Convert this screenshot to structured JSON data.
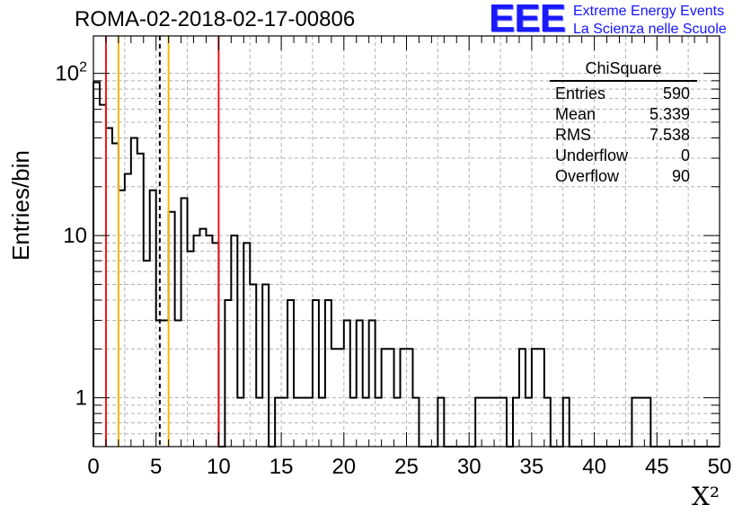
{
  "title": "ROMA-02-2018-02-17-00806",
  "logo": {
    "mark": "EEE",
    "line1": "Extreme Energy Events",
    "line2": "La Scienza nelle Scuole"
  },
  "stats": {
    "title": "ChiSquare",
    "rows": [
      {
        "label": "Entries",
        "value": "590"
      },
      {
        "label": "Mean",
        "value": "5.339"
      },
      {
        "label": "RMS",
        "value": "7.538"
      },
      {
        "label": "Underflow",
        "value": "0"
      },
      {
        "label": "Overflow",
        "value": "90"
      }
    ]
  },
  "colors": {
    "red_line": "#e8141b",
    "yellow_line": "#f2b807",
    "grid": "#b0b0b0",
    "hist": "#000000"
  },
  "chart_data": {
    "type": "bar",
    "title": "ROMA-02-2018-02-17-00806",
    "xlabel": "X²",
    "ylabel": "Entries/bin",
    "xlim": [
      0,
      50
    ],
    "ylim": [
      0.5,
      170
    ],
    "yscale": "log",
    "grid": true,
    "bin_width": 0.5,
    "x_ticks": [
      "0",
      "5",
      "10",
      "15",
      "20",
      "25",
      "30",
      "35",
      "40",
      "45",
      "50"
    ],
    "y_ticks": [
      {
        "value": 1,
        "label": "1"
      },
      {
        "value": 10,
        "label": "10"
      },
      {
        "value": 100,
        "label": "10²"
      }
    ],
    "values": [
      88,
      64,
      46,
      37,
      19,
      24,
      40,
      32,
      7,
      19,
      3,
      3,
      14,
      3,
      17,
      8,
      10,
      11,
      10,
      9,
      0,
      4,
      10,
      1,
      9,
      5,
      1,
      5,
      0,
      1,
      1,
      4,
      1,
      1,
      1,
      4,
      1,
      4,
      2,
      2,
      3,
      1,
      3,
      1,
      3,
      1,
      2,
      2,
      1,
      2,
      2,
      1,
      0,
      0,
      0,
      1,
      0,
      0,
      0,
      0,
      0,
      1,
      1,
      1,
      1,
      1,
      0,
      1,
      2,
      1,
      2,
      2,
      1,
      0,
      0,
      1,
      0,
      0,
      0,
      0,
      0,
      0,
      0,
      0,
      0,
      0,
      1,
      1,
      1,
      0,
      0,
      0,
      0,
      0,
      0,
      0,
      0,
      0,
      0,
      0
    ],
    "series": [
      {
        "values": [
          88,
          64,
          46,
          37,
          19,
          24,
          40,
          32,
          7,
          19,
          3,
          3,
          14,
          3,
          17,
          8,
          10,
          11,
          10,
          9,
          0,
          4,
          10,
          1,
          9,
          5,
          1,
          5,
          0,
          1,
          1,
          4,
          1,
          1,
          1,
          4,
          1,
          4,
          2,
          2,
          3,
          1,
          3,
          1,
          3,
          1,
          2,
          2,
          1,
          2,
          2,
          1,
          0,
          0,
          0,
          1,
          0,
          0,
          0,
          0,
          0,
          1,
          1,
          1,
          1,
          1,
          0,
          1,
          2,
          1,
          2,
          2,
          1,
          0,
          0,
          1,
          0,
          0,
          0,
          0,
          0,
          0,
          0,
          0,
          0,
          0,
          1,
          1,
          1,
          0,
          0,
          0,
          0,
          0,
          0,
          0,
          0,
          0,
          0,
          0
        ]
      }
    ],
    "vertical_lines": [
      {
        "x": 1,
        "color": "red"
      },
      {
        "x": 2,
        "color": "yellow"
      },
      {
        "x": 5.3,
        "color": "black",
        "style": "dashed"
      },
      {
        "x": 6,
        "color": "yellow"
      },
      {
        "x": 10,
        "color": "red"
      }
    ]
  }
}
